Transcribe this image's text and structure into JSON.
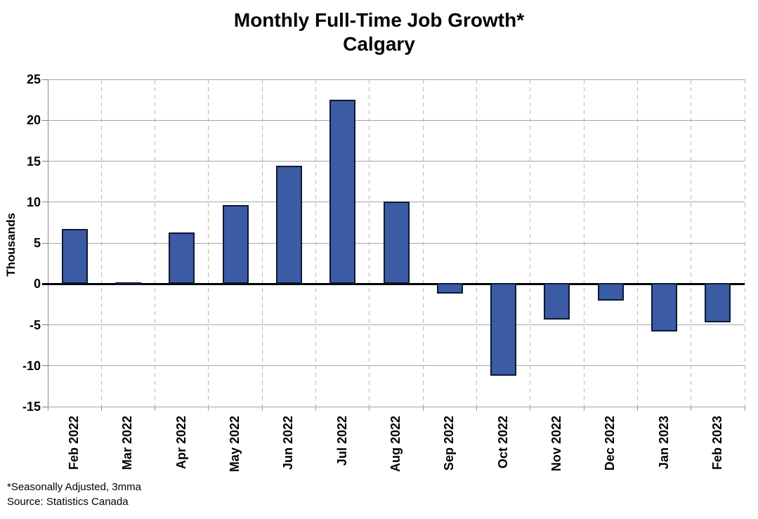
{
  "chart_data": {
    "type": "bar",
    "title": "Monthly Full-Time Job Growth*",
    "subtitle": "Calgary",
    "xlabel": "",
    "ylabel": "Thousands",
    "categories": [
      "Feb 2022",
      "Mar 2022",
      "Apr 2022",
      "May 2022",
      "Jun 2022",
      "Jul 2022",
      "Aug 2022",
      "Sep 2022",
      "Oct 2022",
      "Nov 2022",
      "Dec 2022",
      "Jan 2023",
      "Feb 2023"
    ],
    "values": [
      6.7,
      0.2,
      6.3,
      9.6,
      14.4,
      22.5,
      10.1,
      -1.3,
      -11.3,
      -4.4,
      -2.1,
      -5.9,
      -4.8
    ],
    "ylim": [
      -15,
      25
    ],
    "ytick_step": 5,
    "grid": true,
    "legend": "none",
    "bar_color": "#3B5BA5",
    "bar_border_color": "#0D1A2E",
    "gridline_color": "#A6A6A6",
    "dashed_gridline_color": "#B8B8B8",
    "zero_line_color": "#000000"
  },
  "footnotes": [
    "*Seasonally Adjusted, 3mma",
    "Source: Statistics Canada"
  ]
}
